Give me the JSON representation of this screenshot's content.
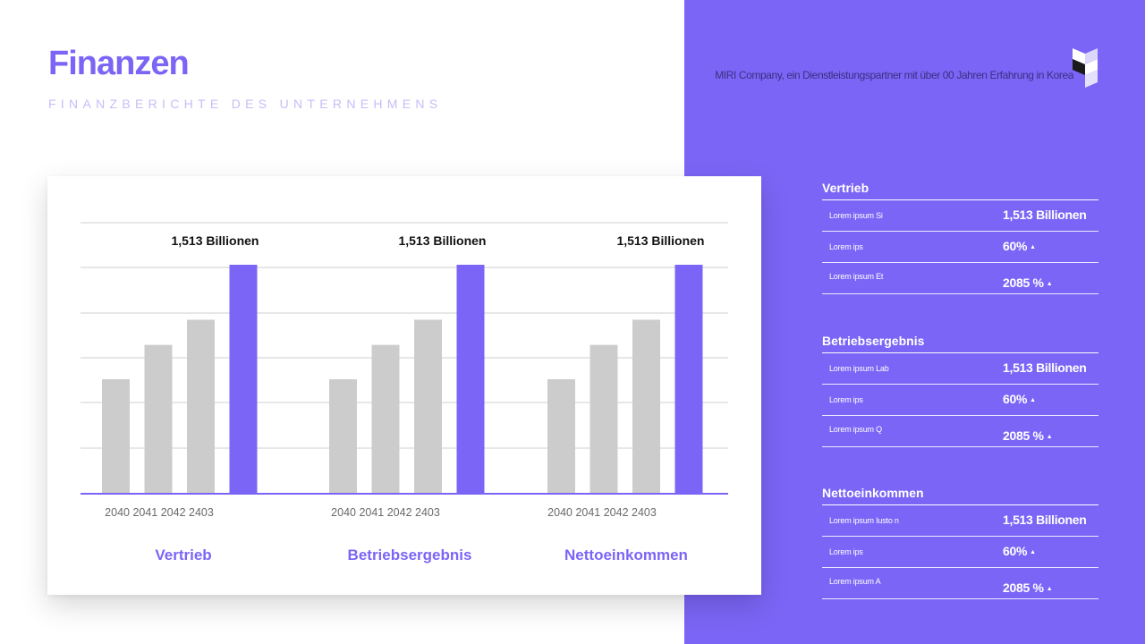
{
  "header": {
    "title": "Finanzen",
    "subtitle": "FINANZBERICHTE DES UNTERNEHMENS",
    "company": "MIRI Company, ein Dienstleistungspartner mit über 00 Jahren Erfahrung in Korea"
  },
  "colors": {
    "accent": "#7b65f6",
    "bar_gray": "#cccccc",
    "subtitle": "#c6bdf9"
  },
  "icons": {
    "logo": "cube-logo-icon"
  },
  "chart_data": {
    "type": "bar",
    "title": "",
    "xlabel": "",
    "ylabel": "",
    "ylim": [
      0,
      100
    ],
    "grid": true,
    "groups": [
      {
        "label": "Vertrieb",
        "categories": [
          "2040",
          "2041",
          "2042",
          "2403"
        ],
        "values": [
          50,
          65,
          76,
          100
        ],
        "annotation": "1,513 Billionen"
      },
      {
        "label": "Betriebsergebnis",
        "categories": [
          "2040",
          "2041",
          "2042",
          "2403"
        ],
        "values": [
          50,
          65,
          76,
          100
        ],
        "annotation": "1,513 Billionen"
      },
      {
        "label": "Nettoeinkommen",
        "categories": [
          "2040",
          "2041",
          "2042",
          "2403"
        ],
        "values": [
          50,
          65,
          76,
          100
        ],
        "annotation": "1,513 Billionen"
      }
    ]
  },
  "sections": [
    {
      "title": "Vertrieb",
      "rows": [
        {
          "label": "Lorem ipsum Si",
          "value": "1,513 Billionen",
          "arrow": ""
        },
        {
          "label": "Lorem ips",
          "value": "60%",
          "arrow": "▲"
        },
        {
          "label": "Lorem ipsum Et",
          "value": "2085 %",
          "arrow": "▲"
        }
      ]
    },
    {
      "title": "Betriebsergebnis",
      "rows": [
        {
          "label": "Lorem ipsum Lab",
          "value": "1,513 Billionen",
          "arrow": ""
        },
        {
          "label": "Lorem ips",
          "value": "60%",
          "arrow": "▲"
        },
        {
          "label": "Lorem ipsum Q",
          "value": "2085 %",
          "arrow": "▲"
        }
      ]
    },
    {
      "title": "Nettoeinkommen",
      "rows": [
        {
          "label": "Lorem ipsum Iusto n",
          "value": "1,513 Billionen",
          "arrow": ""
        },
        {
          "label": "Lorem ips",
          "value": "60%",
          "arrow": "▲"
        },
        {
          "label": "Lorem ipsum A",
          "value": "2085 %",
          "arrow": "▲"
        }
      ]
    }
  ]
}
